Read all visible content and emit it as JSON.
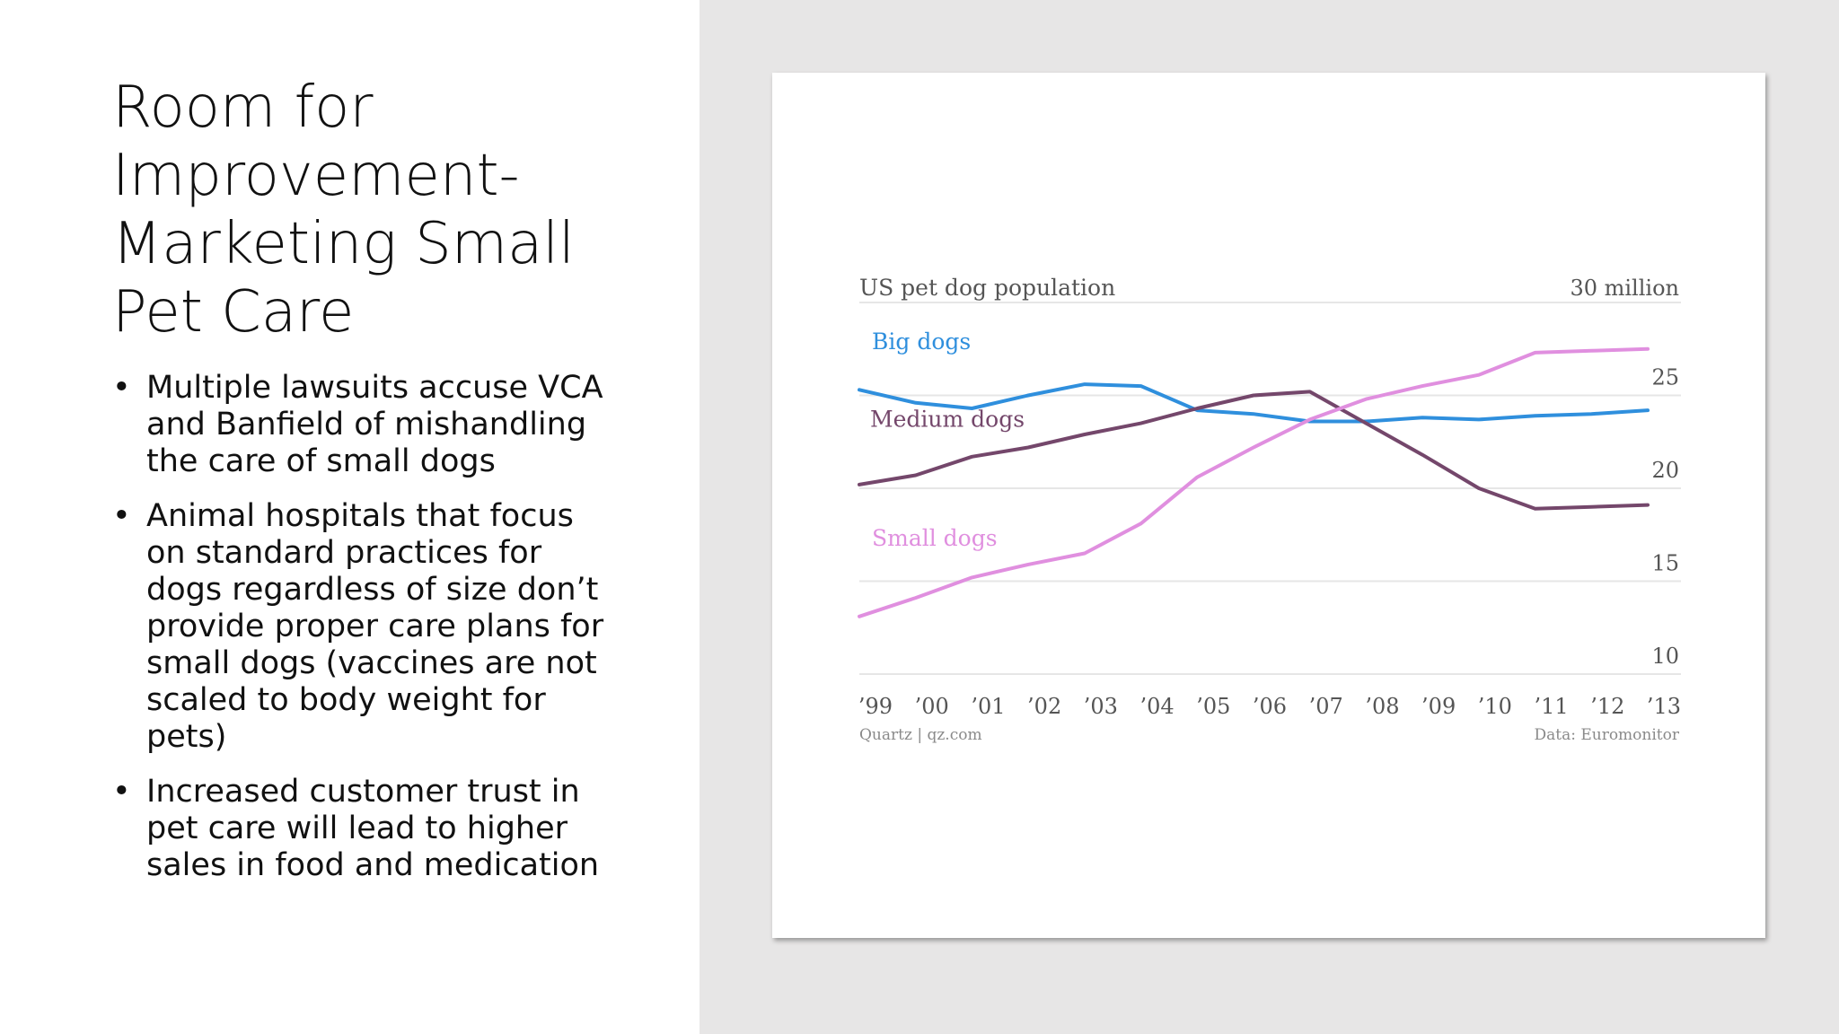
{
  "slide": {
    "title": "Room for Improvement- Marketing Small Pet Care",
    "bullets": [
      "Multiple lawsuits accuse VCA and Banfield of mishandling the care of small dogs",
      "Animal hospitals that focus on standard practices for dogs regardless of size don’t provide proper care plans for small dogs (vaccines are not scaled to body weight for pets)",
      "Increased customer trust in pet care will lead to higher sales in food and medication"
    ],
    "bullet_symbol": "•"
  },
  "chart_data": {
    "type": "line",
    "title": "US pet dog population",
    "unit_label": "30 million",
    "categories": [
      "’99",
      "’00",
      "’01",
      "’02",
      "’03",
      "’04",
      "’05",
      "’06",
      "’07",
      "’08",
      "’09",
      "’10",
      "’11",
      "’12",
      "’13"
    ],
    "ylim": [
      10,
      30
    ],
    "yticks": [
      10,
      15,
      20,
      25,
      30
    ],
    "ytick_labels": [
      "10",
      "15",
      "20",
      "25",
      "30 million"
    ],
    "series": [
      {
        "name": "Big dogs",
        "color": "#2f8fdd",
        "values": [
          25.3,
          24.6,
          24.3,
          25.0,
          25.6,
          25.5,
          24.2,
          24.0,
          23.6,
          23.6,
          23.8,
          23.7,
          23.9,
          24.0,
          24.2
        ]
      },
      {
        "name": "Medium dogs",
        "color": "#74476b",
        "values": [
          20.2,
          20.7,
          21.7,
          22.2,
          22.9,
          23.5,
          24.3,
          25.0,
          25.2,
          23.5,
          21.8,
          20.0,
          18.9,
          19.0,
          19.1
        ]
      },
      {
        "name": "Small dogs",
        "color": "#e08fdf",
        "values": [
          13.1,
          14.1,
          15.2,
          15.9,
          16.5,
          18.1,
          20.6,
          22.2,
          23.7,
          24.8,
          25.5,
          26.1,
          27.3,
          27.4,
          27.5
        ]
      }
    ],
    "source_left": "Quartz | qz.com",
    "source_right": "Data: Euromonitor"
  }
}
